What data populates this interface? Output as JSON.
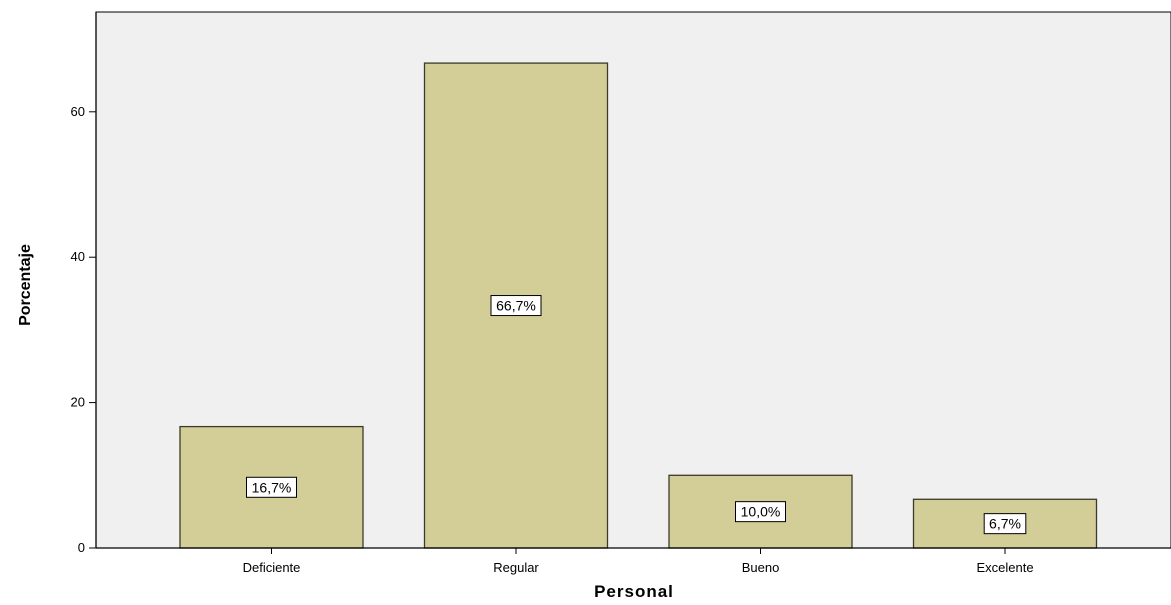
{
  "chart_data": {
    "type": "bar",
    "categories": [
      "Deficiente",
      "Regular",
      "Bueno",
      "Excelente"
    ],
    "values": [
      16.7,
      66.7,
      10.0,
      6.7
    ],
    "data_labels": [
      "16,7%",
      "66,7%",
      "10,0%",
      "6,7%"
    ],
    "xlabel": "Personal",
    "ylabel": "Porcentaje",
    "ylim": [
      0,
      70
    ],
    "yticks": [
      0,
      20,
      40,
      60
    ],
    "grid": false,
    "colors": {
      "bar_fill": "#d3cd98",
      "bar_stroke": "#3b3b2a",
      "plot_background": "#f0f0f0",
      "axis": "#000000"
    }
  }
}
